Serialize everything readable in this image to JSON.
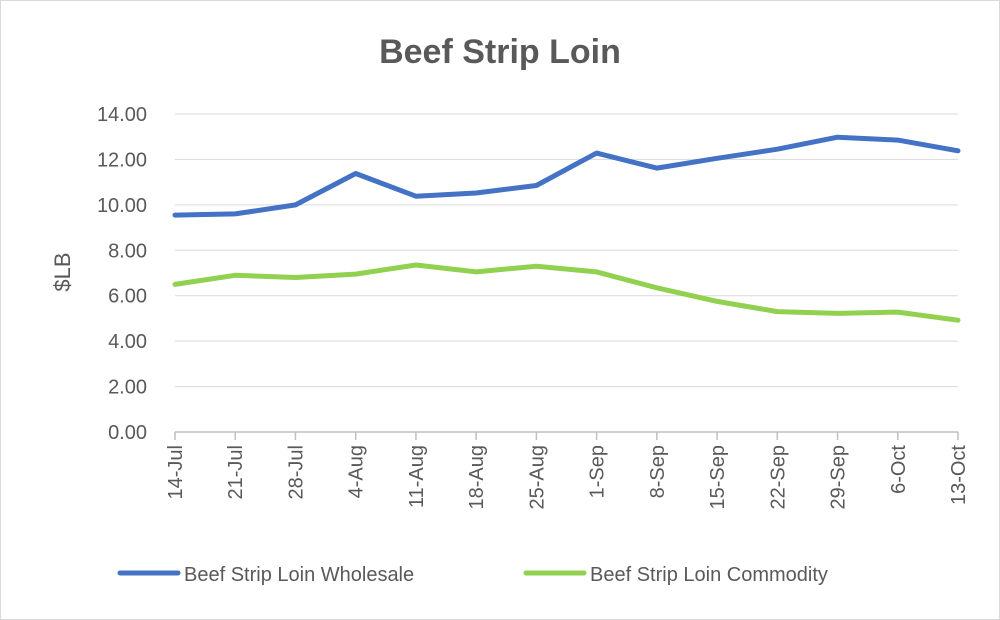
{
  "chart_data": {
    "type": "line",
    "title": "Beef Strip Loin",
    "xlabel": "",
    "ylabel": "$LB",
    "ylim": [
      0,
      14
    ],
    "ytick_step": 2,
    "ytick_labels": [
      "0.00",
      "2.00",
      "4.00",
      "6.00",
      "8.00",
      "10.00",
      "12.00",
      "14.00"
    ],
    "grid": true,
    "legend_position": "bottom",
    "categories": [
      "14-Jul",
      "21-Jul",
      "28-Jul",
      "4-Aug",
      "11-Aug",
      "18-Aug",
      "25-Aug",
      "1-Sep",
      "8-Sep",
      "15-Sep",
      "22-Sep",
      "29-Sep",
      "6-Oct",
      "13-Oct"
    ],
    "series": [
      {
        "name": "Beef Strip Loin Wholesale",
        "color": "#4472c4",
        "values": [
          9.55,
          9.6,
          10.0,
          11.38,
          10.38,
          10.52,
          10.85,
          12.28,
          11.62,
          12.05,
          12.45,
          12.98,
          12.85,
          12.38
        ]
      },
      {
        "name": "Beef Strip Loin Commodity",
        "color": "#92d050",
        "values": [
          6.5,
          6.9,
          6.8,
          6.95,
          7.35,
          7.05,
          7.3,
          7.05,
          6.35,
          5.75,
          5.3,
          5.22,
          5.28,
          4.92
        ]
      }
    ]
  }
}
